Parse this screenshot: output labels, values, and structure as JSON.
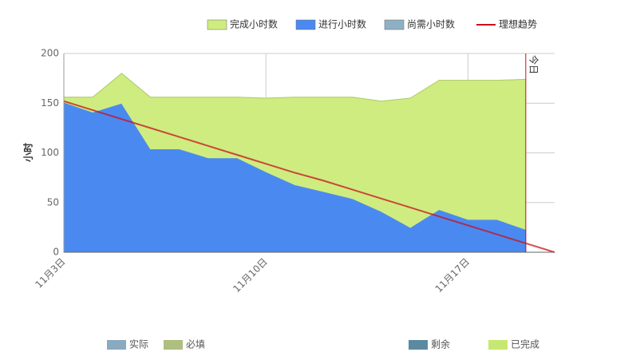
{
  "chart_data": {
    "type": "area",
    "y_label": "小时",
    "categories": [
      "11月3日",
      null,
      null,
      null,
      null,
      null,
      null,
      "11月10日",
      null,
      null,
      null,
      null,
      null,
      null,
      "11月17日",
      null,
      null,
      null
    ],
    "series": [
      {
        "name": "完成小时数",
        "color": "#cfec80",
        "values": [
          5,
          15,
          30,
          52,
          52,
          61,
          61,
          74,
          88,
          95,
          102,
          111,
          130,
          130,
          140,
          140,
          151,
          null
        ]
      },
      {
        "name": "进行小时数",
        "color": "#4a8af0",
        "values": [
          151,
          141,
          150,
          104,
          104,
          95,
          95,
          81,
          68,
          61,
          54,
          41,
          25,
          43,
          33,
          33,
          23,
          null
        ]
      },
      {
        "name": "尚需小时数",
        "color": "#8eb0c4",
        "values": [
          0,
          0,
          0,
          0,
          0,
          0,
          0,
          0,
          0,
          0,
          0,
          0,
          0,
          0,
          0,
          0,
          0,
          null
        ]
      },
      {
        "name": "理想趋势",
        "color": "#c8101c",
        "type": "line",
        "values": [
          152,
          143,
          134,
          125,
          116,
          107,
          98,
          89,
          80,
          72,
          63,
          54,
          45,
          36,
          27,
          18,
          9,
          0
        ]
      }
    ],
    "today_label": "今日",
    "ylim": [
      0,
      200
    ],
    "yticks": [
      0,
      50,
      100,
      150,
      200
    ],
    "grid": true
  },
  "extra_legends": [
    [
      {
        "name": "实际",
        "color": "#8aaabf"
      },
      {
        "name": "必填",
        "color": "#aebf80"
      }
    ],
    [
      {
        "name": "剩余",
        "color": "#5b8aa0"
      },
      {
        "name": "已完成",
        "color": "#c7e870"
      }
    ]
  ]
}
